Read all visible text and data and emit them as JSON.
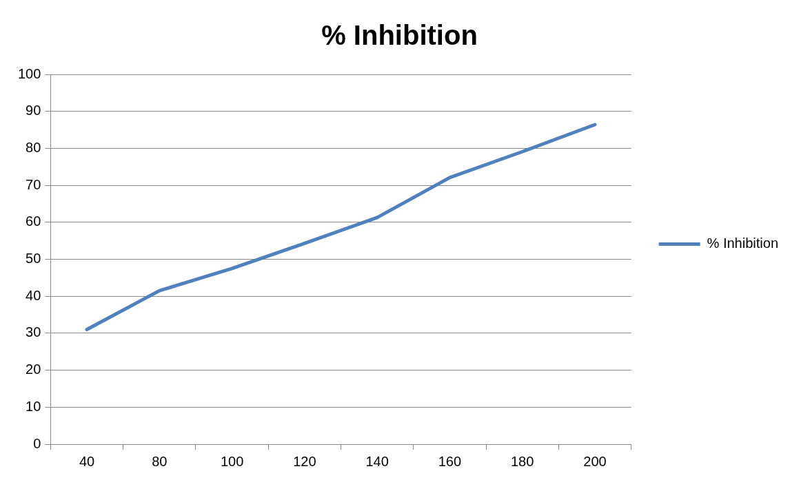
{
  "chart_data": {
    "type": "line",
    "title": "% Inhibition",
    "categories": [
      "40",
      "80",
      "100",
      "120",
      "140",
      "160",
      "180",
      "200"
    ],
    "series": [
      {
        "name": "% Inhibition",
        "color": "#4f81bd",
        "values": [
          31.0,
          41.5,
          47.5,
          54.3,
          61.3,
          72.1,
          79.1,
          86.4
        ]
      }
    ],
    "ylim": [
      0,
      100
    ],
    "yticks": [
      0,
      10,
      20,
      30,
      40,
      50,
      60,
      70,
      80,
      90,
      100
    ],
    "grid": "y",
    "legend": "right",
    "marker": "none",
    "line_style": "solid"
  }
}
